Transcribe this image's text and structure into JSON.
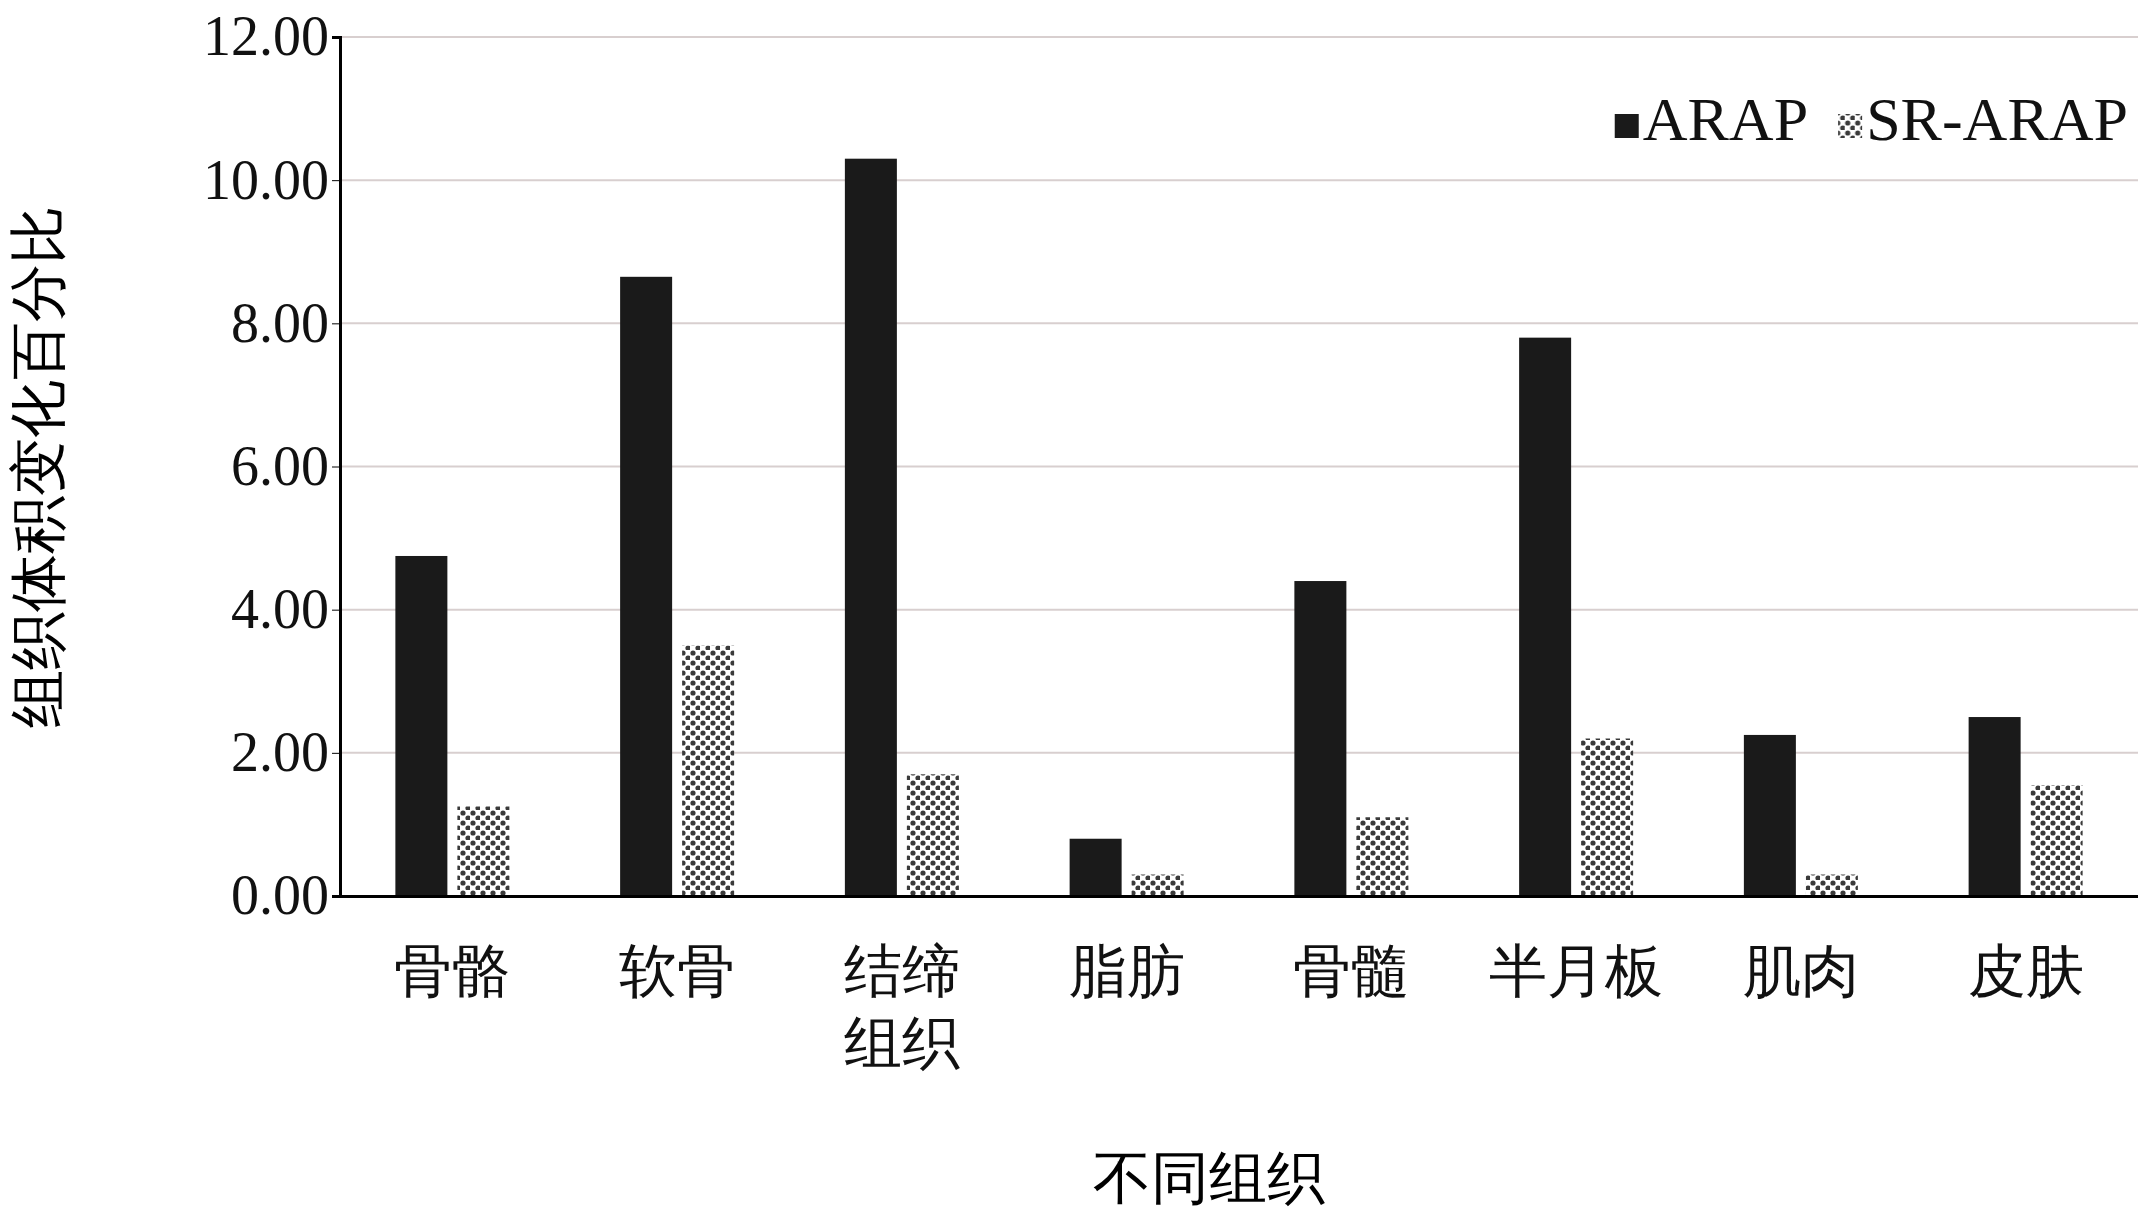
{
  "chart_data": {
    "type": "bar",
    "xlabel": "不同组织",
    "ylabel": "组织体积变化百分比",
    "categories": [
      "骨骼",
      "软骨",
      "结缔组织",
      "脂肪",
      "骨髓",
      "半月板",
      "肌肉",
      "皮肤"
    ],
    "series": [
      {
        "name": "ARAP",
        "color": "#1a1a1a",
        "values": [
          4.75,
          8.65,
          10.3,
          0.8,
          4.4,
          7.8,
          2.25,
          2.5
        ]
      },
      {
        "name": "SR-ARAP",
        "color": "#3a3a3a",
        "values": [
          1.25,
          3.5,
          1.7,
          0.3,
          1.1,
          2.2,
          0.3,
          1.55
        ]
      }
    ],
    "ylim": [
      0,
      12
    ],
    "yticks": [
      {
        "value": 0,
        "label": "0.00"
      },
      {
        "value": 2,
        "label": "2.00"
      },
      {
        "value": 4,
        "label": "4.00"
      },
      {
        "value": 6,
        "label": "6.00"
      },
      {
        "value": 8,
        "label": "8.00"
      },
      {
        "value": 10,
        "label": "10.00"
      },
      {
        "value": 12,
        "label": "12.00"
      }
    ],
    "grid": "y",
    "legend": "top right"
  }
}
